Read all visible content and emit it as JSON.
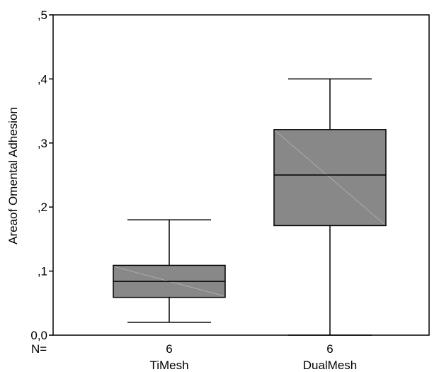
{
  "chart_data": {
    "type": "boxplot",
    "ylabel": "Areaof Omental Adhesion",
    "ylim": [
      0,
      0.5
    ],
    "y_ticks": [
      {
        "value": 0,
        "label": "0,0"
      },
      {
        "value": 0.1,
        "label": ",1"
      },
      {
        "value": 0.2,
        "label": ",2"
      },
      {
        "value": 0.3,
        "label": ",3"
      },
      {
        "value": 0.4,
        "label": ",4"
      },
      {
        "value": 0.5,
        "label": ",5"
      }
    ],
    "n_label": "N=",
    "categories": [
      "TiMesh",
      "DualMesh"
    ],
    "boxes": [
      {
        "name": "TiMesh",
        "n": "6",
        "whisker_low": 0.02,
        "q1": 0.059,
        "median": 0.084,
        "q3": 0.109,
        "whisker_high": 0.18
      },
      {
        "name": "DualMesh",
        "n": "6",
        "whisker_low": 0.0,
        "q1": 0.171,
        "median": 0.25,
        "q3": 0.321,
        "whisker_high": 0.4
      }
    ],
    "box_color": "#888888",
    "grid": false
  }
}
